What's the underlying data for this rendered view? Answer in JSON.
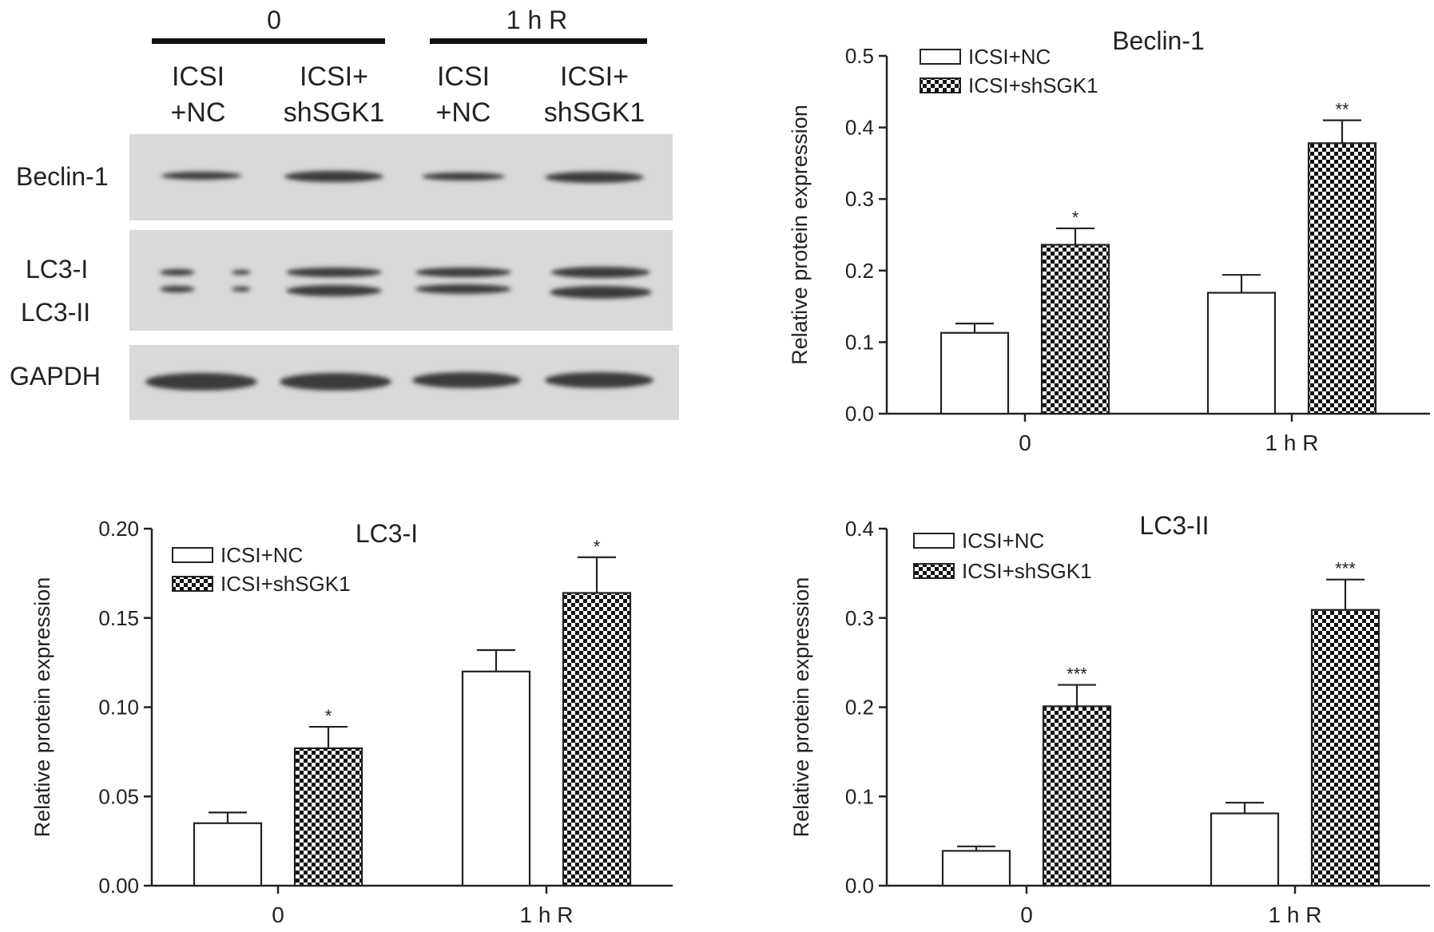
{
  "western_blot": {
    "groups": [
      "0",
      "1 h R"
    ],
    "lanes": [
      {
        "line1": "ICSI",
        "line2": "+NC"
      },
      {
        "line1": "ICSI+",
        "line2": "shSGK1"
      },
      {
        "line1": "ICSI",
        "line2": "+NC"
      },
      {
        "line1": "ICSI+",
        "line2": "shSGK1"
      }
    ],
    "rows": {
      "beclin": "Beclin-1",
      "lc3i": "LC3-I",
      "lc3ii": "LC3-II",
      "gapdh": "GAPDH"
    }
  },
  "chart_data": [
    {
      "id": "beclin",
      "type": "bar",
      "title": "Beclin-1",
      "xlabel": "",
      "ylabel": "Relative  protein expression",
      "categories": [
        "0",
        "1 h R"
      ],
      "ylim": [
        0,
        0.5
      ],
      "yticks": [
        0.0,
        0.1,
        0.2,
        0.3,
        0.4,
        0.5
      ],
      "tick_labels": [
        "0.0",
        "0.1",
        "0.2",
        "0.3",
        "0.4",
        "0.5"
      ],
      "legend": "top-left",
      "series": [
        {
          "name": "ICSI+NC",
          "pattern": "white",
          "values": [
            0.113,
            0.169
          ],
          "errors": [
            0.013,
            0.025
          ],
          "sig": [
            "",
            ""
          ]
        },
        {
          "name": "ICSI+shSGK1",
          "pattern": "checker",
          "values": [
            0.236,
            0.378
          ],
          "errors": [
            0.023,
            0.032
          ],
          "sig": [
            "*",
            "**"
          ]
        }
      ]
    },
    {
      "id": "lc3i",
      "type": "bar",
      "title": "LC3-I",
      "xlabel": "",
      "ylabel": "Relative  protein expression",
      "categories": [
        "0",
        "1 h R"
      ],
      "ylim": [
        0,
        0.2
      ],
      "yticks": [
        0.0,
        0.05,
        0.1,
        0.15,
        0.2
      ],
      "tick_labels": [
        "0.00",
        "0.05",
        "0.10",
        "0.15",
        "0.20"
      ],
      "legend": "top-left",
      "series": [
        {
          "name": "ICSI+NC",
          "pattern": "white",
          "values": [
            0.035,
            0.12
          ],
          "errors": [
            0.006,
            0.012
          ],
          "sig": [
            "",
            ""
          ]
        },
        {
          "name": "ICSI+shSGK1",
          "pattern": "checker",
          "values": [
            0.077,
            0.164
          ],
          "errors": [
            0.012,
            0.02
          ],
          "sig": [
            "*",
            "*"
          ]
        }
      ]
    },
    {
      "id": "lc3ii",
      "type": "bar",
      "title": "LC3-II",
      "xlabel": "",
      "ylabel": "Relative  protein expression",
      "categories": [
        "0",
        "1 h R"
      ],
      "ylim": [
        0,
        0.4
      ],
      "yticks": [
        0.0,
        0.1,
        0.2,
        0.3,
        0.4
      ],
      "tick_labels": [
        "0.0",
        "0.1",
        "0.2",
        "0.3",
        "0.4"
      ],
      "legend": "top-left",
      "series": [
        {
          "name": "ICSI+NC",
          "pattern": "white",
          "values": [
            0.039,
            0.081
          ],
          "errors": [
            0.005,
            0.012
          ],
          "sig": [
            "",
            ""
          ]
        },
        {
          "name": "ICSI+shSGK1",
          "pattern": "checker",
          "values": [
            0.201,
            0.309
          ],
          "errors": [
            0.024,
            0.034
          ],
          "sig": [
            "***",
            "***"
          ]
        }
      ]
    }
  ]
}
